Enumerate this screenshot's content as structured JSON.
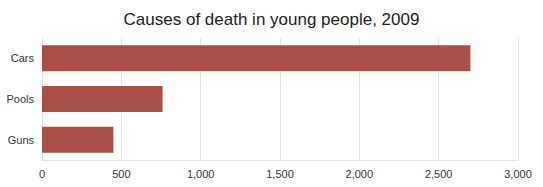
{
  "chart_data": {
    "type": "bar",
    "title": "Causes of death in young people, 2009",
    "orientation": "horizontal",
    "categories": [
      "Cars",
      "Pools",
      "Guns"
    ],
    "values": [
      2700,
      760,
      450
    ],
    "color": "#a94f47",
    "xlim": [
      0,
      3000
    ],
    "xticks": [
      0,
      500,
      {
        "value": 1000,
        "label": "1,000"
      },
      {
        "value": 1500,
        "label": "1,500"
      },
      {
        "value": 2000,
        "label": "2,000"
      },
      {
        "value": 2500,
        "label": "2,500"
      },
      {
        "value": 3000,
        "label": "3,000"
      }
    ],
    "grid": true
  }
}
